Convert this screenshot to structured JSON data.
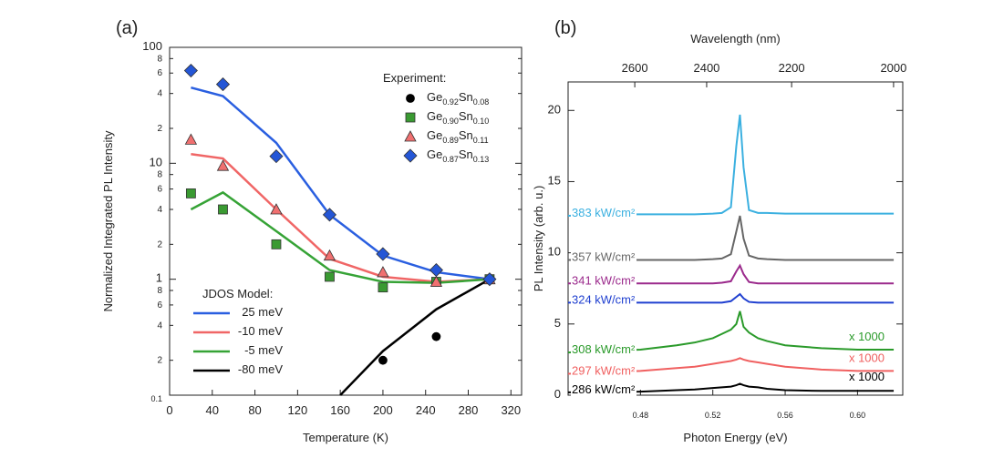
{
  "chart_data": [
    {
      "type": "line",
      "title": "(a)",
      "xlabel": "Temperature (K)",
      "ylabel": "Normalized Integrated PL Intensity",
      "log_y": true,
      "xlim": [
        0,
        330
      ],
      "ylim": [
        0.1,
        100
      ],
      "xticks": [
        0,
        40,
        80,
        120,
        160,
        200,
        240,
        280,
        320
      ],
      "yticks": [
        0.1,
        1,
        10,
        100
      ],
      "yminor_ticks": [
        {
          "value": 0.2,
          "label": "2"
        },
        {
          "value": 0.4,
          "label": "4"
        },
        {
          "value": 0.6,
          "label": "6"
        },
        {
          "value": 0.8,
          "label": "8"
        },
        {
          "value": 2,
          "label": "2"
        },
        {
          "value": 4,
          "label": "4"
        },
        {
          "value": 6,
          "label": "6"
        },
        {
          "value": 8,
          "label": "8"
        },
        {
          "value": 20,
          "label": "2"
        },
        {
          "value": 40,
          "label": "4"
        },
        {
          "value": 60,
          "label": "6"
        },
        {
          "value": 80,
          "label": "8"
        }
      ],
      "experiment_title": "Experiment:",
      "series": [
        {
          "name": "Ge0.92Sn0.08",
          "color": "#000000",
          "marker": "circle",
          "x": [
            200,
            250,
            300
          ],
          "values": [
            0.2,
            0.32,
            1
          ]
        },
        {
          "name": "Ge0.90Sn0.10",
          "color": "#3a9a32",
          "marker": "square",
          "x": [
            20,
            50,
            100,
            150,
            200,
            250,
            300
          ],
          "values": [
            5.5,
            4.0,
            2.0,
            1.05,
            0.85,
            0.95,
            1
          ]
        },
        {
          "name": "Ge0.89Sn0.11",
          "color": "#f07070",
          "marker": "triangle",
          "x": [
            20,
            50,
            100,
            150,
            200,
            250,
            300
          ],
          "values": [
            16,
            9.5,
            4.0,
            1.6,
            1.15,
            0.95,
            1
          ]
        },
        {
          "name": "Ge0.87Sn0.13",
          "color": "#2456d6",
          "marker": "diamond",
          "x": [
            20,
            50,
            100,
            150,
            200,
            250,
            300
          ],
          "values": [
            63,
            48,
            11.5,
            3.6,
            1.65,
            1.2,
            1
          ]
        }
      ],
      "model_title": "JDOS Model:",
      "model_series": [
        {
          "name": "25 meV",
          "color": "#2a5fe0",
          "x": [
            20,
            50,
            100,
            150,
            200,
            250,
            300
          ],
          "values": [
            45,
            38,
            15,
            3.6,
            1.6,
            1.15,
            1
          ]
        },
        {
          "name": "-10 meV",
          "color": "#f06666",
          "x": [
            20,
            50,
            100,
            150,
            200,
            250,
            300
          ],
          "values": [
            12,
            11,
            4.0,
            1.5,
            1.05,
            0.95,
            1
          ]
        },
        {
          "name": "-5 meV",
          "color": "#36a336",
          "x": [
            20,
            50,
            100,
            150,
            200,
            250,
            300
          ],
          "values": [
            4,
            5.6,
            2.6,
            1.2,
            0.95,
            0.93,
            1
          ]
        },
        {
          "name": "-80 meV",
          "color": "#000000",
          "x": [
            160,
            200,
            250,
            300
          ],
          "values": [
            0.1,
            0.24,
            0.55,
            1
          ]
        }
      ]
    },
    {
      "type": "line",
      "title": "(b)",
      "xlabel": "Photon Energy (eV)",
      "ylabel": "PL Intensity (arb. u.)",
      "x2label": "Wavelength (nm)",
      "xlim": [
        0.44,
        0.625
      ],
      "ylim": [
        0,
        22
      ],
      "xticks": [
        0.48,
        0.52,
        0.56,
        {
          "value": 0.6,
          "label": "0.60"
        }
      ],
      "yticks": [
        0,
        5,
        10,
        15,
        20
      ],
      "x2ticks": [
        2600,
        2400,
        2200,
        2000
      ],
      "x": [
        0.44,
        0.46,
        0.48,
        0.5,
        0.51,
        0.52,
        0.525,
        0.53,
        0.533,
        0.535,
        0.537,
        0.54,
        0.545,
        0.55,
        0.56,
        0.58,
        0.6,
        0.62
      ],
      "series": [
        {
          "name": "383 kW/cm²",
          "color": "#3bb0e0",
          "values": [
            12.6,
            12.7,
            12.7,
            12.7,
            12.7,
            12.75,
            12.8,
            13.2,
            17.5,
            19.7,
            16,
            13.0,
            12.8,
            12.8,
            12.75,
            12.75,
            12.75,
            12.75
          ]
        },
        {
          "name": "357 kW/cm²",
          "color": "#666666",
          "values": [
            9.5,
            9.5,
            9.5,
            9.5,
            9.5,
            9.55,
            9.6,
            9.9,
            11.5,
            12.6,
            11,
            9.8,
            9.6,
            9.55,
            9.5,
            9.5,
            9.5,
            9.5
          ]
        },
        {
          "name": "341 kW/cm²",
          "color": "#9b2a8c",
          "values": [
            7.85,
            7.85,
            7.85,
            7.85,
            7.85,
            7.85,
            7.9,
            8.0,
            8.7,
            9.1,
            8.5,
            7.95,
            7.85,
            7.85,
            7.85,
            7.85,
            7.85,
            7.85
          ]
        },
        {
          "name": "324 kW/cm²",
          "color": "#2040d0",
          "values": [
            6.5,
            6.5,
            6.5,
            6.5,
            6.5,
            6.5,
            6.5,
            6.6,
            6.9,
            7.1,
            6.8,
            6.55,
            6.5,
            6.5,
            6.5,
            6.5,
            6.5,
            6.5
          ]
        },
        {
          "name": "308 kW/cm²",
          "color": "#2a9a2a",
          "note": "x 1000",
          "values": [
            3.0,
            3.1,
            3.2,
            3.5,
            3.7,
            4.0,
            4.3,
            4.6,
            5.0,
            5.9,
            4.8,
            4.4,
            4.0,
            3.8,
            3.5,
            3.3,
            3.2,
            3.2
          ]
        },
        {
          "name": "297 kW/cm²",
          "color": "#f06060",
          "note": "x 1000",
          "values": [
            1.5,
            1.6,
            1.7,
            1.9,
            2.0,
            2.2,
            2.3,
            2.4,
            2.5,
            2.6,
            2.5,
            2.4,
            2.3,
            2.2,
            2.0,
            1.8,
            1.7,
            1.7
          ]
        },
        {
          "name": "286 kW/cm²",
          "color": "#000000",
          "note": "x 1000",
          "values": [
            0.2,
            0.2,
            0.25,
            0.35,
            0.4,
            0.5,
            0.55,
            0.6,
            0.7,
            0.8,
            0.7,
            0.6,
            0.55,
            0.45,
            0.35,
            0.3,
            0.3,
            0.3
          ]
        }
      ]
    }
  ]
}
